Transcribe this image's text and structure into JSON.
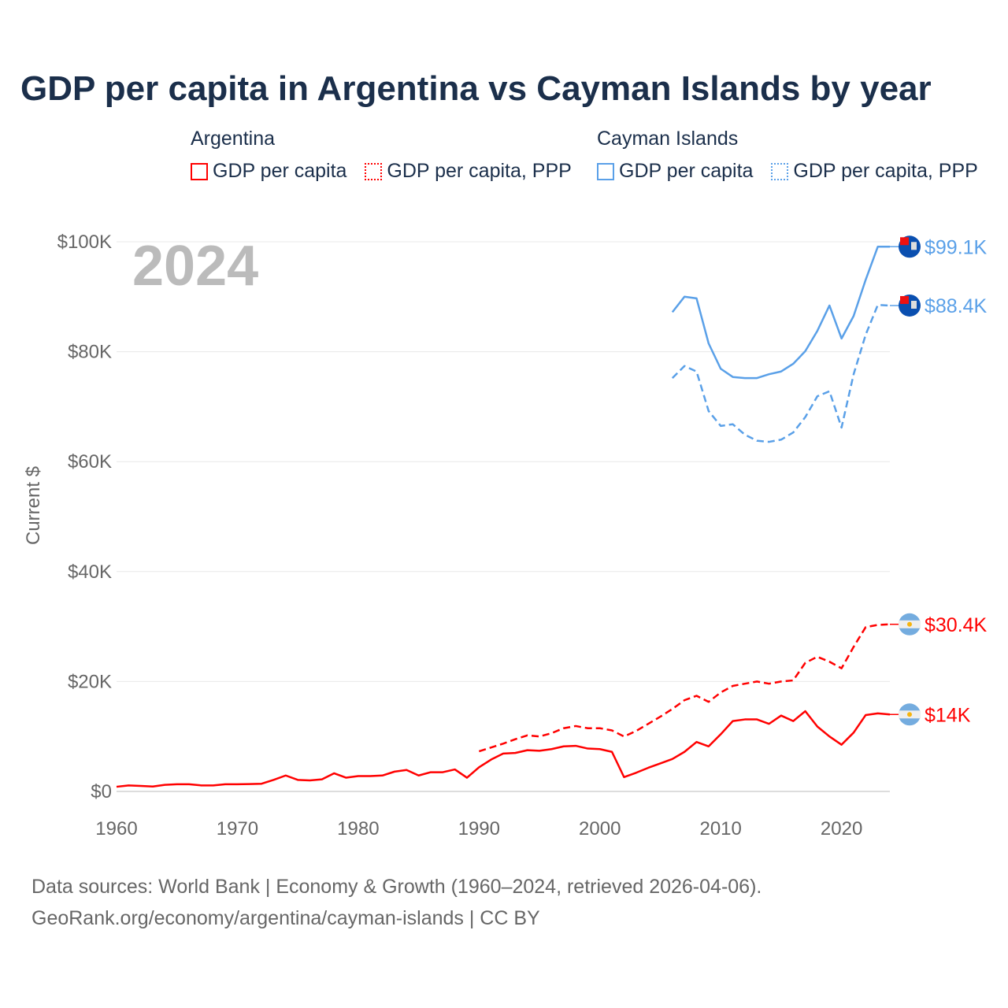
{
  "title": "GDP per capita in Argentina vs Cayman Islands by year",
  "legend": {
    "groups": [
      {
        "name": "Argentina",
        "items": [
          "GDP per capita",
          "GDP per capita, PPP"
        ],
        "color": "#ff0000"
      },
      {
        "name": "Cayman Islands",
        "items": [
          "GDP per capita",
          "GDP per capita, PPP"
        ],
        "color": "#5aa0e8"
      }
    ]
  },
  "footer": {
    "line1": "Data sources: World Bank | Economy & Growth (1960–2024, retrieved 2026-04-06).",
    "line2": "GeoRank.org/economy/argentina/cayman-islands | CC BY"
  },
  "chart_data": {
    "type": "line",
    "title": "GDP per capita in Argentina vs Cayman Islands by year",
    "year_watermark": "2024",
    "ylabel": "Current $",
    "xlabel": "",
    "xlim": [
      1960,
      2024
    ],
    "ylim": [
      0,
      100
    ],
    "x_ticks": [
      "1960",
      "1970",
      "1980",
      "1990",
      "2000",
      "2010",
      "2020"
    ],
    "y_ticks": [
      "$0",
      "$20K",
      "$40K",
      "$60K",
      "$80K",
      "$100K"
    ],
    "units": "thousand USD",
    "series": [
      {
        "name": "Argentina GDP per capita",
        "color": "#ff0000",
        "dash": false,
        "end_label": "$14K",
        "start": 1960,
        "values": [
          0.85,
          1.1,
          1.0,
          0.9,
          1.2,
          1.3,
          1.3,
          1.1,
          1.1,
          1.3,
          1.3,
          1.35,
          1.4,
          2.1,
          2.9,
          2.1,
          2.0,
          2.2,
          3.3,
          2.5,
          2.8,
          2.8,
          2.9,
          3.6,
          3.9,
          2.9,
          3.5,
          3.5,
          4.0,
          2.5,
          4.4,
          5.8,
          6.9,
          7.0,
          7.5,
          7.4,
          7.7,
          8.2,
          8.3,
          7.8,
          7.7,
          7.2,
          2.6,
          3.4,
          4.3,
          5.1,
          5.9,
          7.2,
          9.0,
          8.2,
          10.4,
          12.8,
          13.1,
          13.1,
          12.3,
          13.8,
          12.8,
          14.6,
          11.8,
          10.0,
          8.5,
          10.7,
          13.9,
          14.2,
          14.0
        ]
      },
      {
        "name": "Argentina GDP per capita, PPP",
        "color": "#ff0000",
        "dash": true,
        "end_label": "$30.4K",
        "start": 1990,
        "values": [
          7.3,
          8.0,
          8.7,
          9.5,
          10.2,
          10.0,
          10.6,
          11.5,
          11.9,
          11.5,
          11.5,
          11.1,
          10.0,
          11.0,
          12.3,
          13.6,
          15.0,
          16.6,
          17.4,
          16.3,
          18.0,
          19.2,
          19.6,
          20.0,
          19.6,
          20.0,
          20.2,
          23.4,
          24.5,
          23.6,
          22.4,
          26.3,
          29.9,
          30.3,
          30.4
        ]
      },
      {
        "name": "Cayman Islands GDP per capita",
        "color": "#5aa0e8",
        "dash": false,
        "end_label": "$99.1K",
        "start": 2006,
        "values": [
          87.2,
          90.0,
          89.7,
          81.5,
          76.9,
          75.4,
          75.2,
          75.2,
          75.9,
          76.4,
          77.8,
          80.1,
          83.8,
          88.4,
          82.4,
          86.5,
          93.1,
          99.1,
          99.1
        ]
      },
      {
        "name": "Cayman Islands GDP per capita, PPP",
        "color": "#5aa0e8",
        "dash": true,
        "end_label": "$88.4K",
        "start": 2006,
        "values": [
          75.2,
          77.4,
          76.4,
          69.2,
          66.5,
          66.8,
          64.9,
          63.8,
          63.6,
          64.0,
          65.3,
          68.1,
          71.9,
          72.8,
          66.2,
          75.9,
          83.1,
          88.5,
          88.4
        ]
      }
    ],
    "grid": true
  }
}
